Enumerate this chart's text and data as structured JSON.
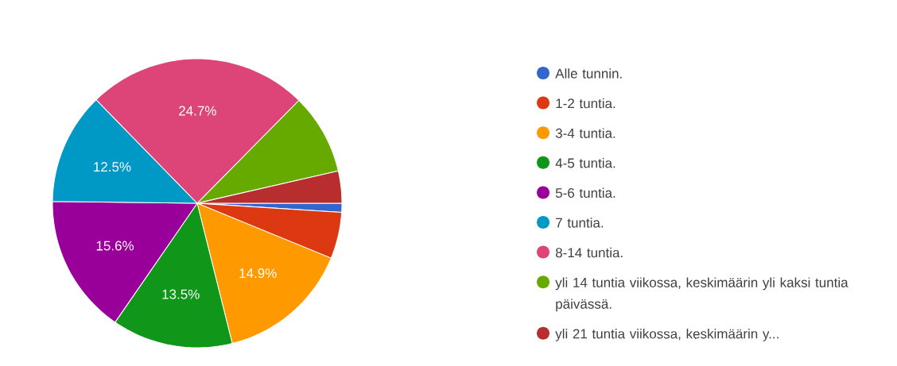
{
  "chart_data": {
    "type": "pie",
    "categories": [
      "Alle tunnin.",
      "1-2 tuntia.",
      "3-4 tuntia.",
      "4-5 tuntia.",
      "5-6 tuntia.",
      "7 tuntia.",
      "8-14 tuntia.",
      "yli 14 tuntia viikossa, keskimäärin yli kaksi tuntia päivässä.",
      "yli 21 tuntia viikossa, keskimäärin y..."
    ],
    "values": [
      1.0,
      5.2,
      14.9,
      13.5,
      15.6,
      12.5,
      24.7,
      9.0,
      3.6
    ],
    "colors": [
      "#3366cc",
      "#dc3912",
      "#ff9900",
      "#109618",
      "#990099",
      "#0099c6",
      "#dd4477",
      "#66aa00",
      "#b82e2e"
    ],
    "value_labels": [
      null,
      null,
      "14.9%",
      "13.5%",
      "15.6%",
      "12.5%",
      "24.7%",
      null,
      null
    ],
    "legend": "right"
  }
}
